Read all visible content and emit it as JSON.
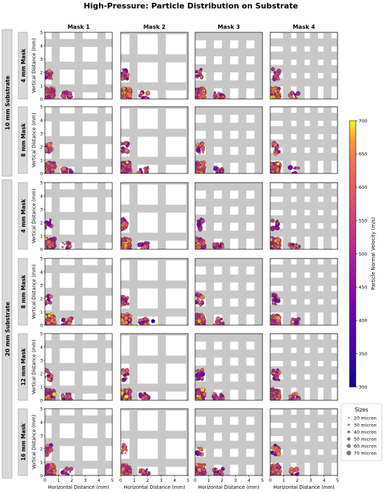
{
  "title": "High-Pressure: Particle Distribution on Substrate",
  "columns": [
    "Mask 1",
    "Mask 2",
    "Mask 3",
    "Mask 4"
  ],
  "substrate_groups": [
    {
      "label": "10 mm Substrate",
      "rows": [
        "4 mm Mask",
        "8 mm Mask"
      ]
    },
    {
      "label": "20 mm Substrate",
      "rows": [
        "4 mm Mask",
        "8 mm Mask",
        "12 mm Mask",
        "16 mm Mask"
      ]
    }
  ],
  "xlabel": "Horizontal Distance (mm)",
  "ylabel": "Vertical Distance (mm)",
  "xlim": [
    0,
    5
  ],
  "ylim": [
    0,
    5
  ],
  "ticks": [
    "0",
    "1",
    "2",
    "3",
    "4",
    "5"
  ],
  "colorbar": {
    "label": "Particle Normal Velocity (m/s)",
    "min": 300,
    "max": 700,
    "ticks": [
      "300",
      "350",
      "400",
      "450",
      "500",
      "550",
      "600",
      "650",
      "700"
    ],
    "colormap": "plasma"
  },
  "sizes_legend": {
    "title": "Sizes",
    "items": [
      "20 micron",
      "30 micron",
      "40 micron",
      "50 micron",
      "60 micron",
      "70 micron"
    ]
  },
  "colors": {
    "mask_bar": "#c8c8c8",
    "row_label_bg": "#d9d9d9",
    "cmap_low": "#0d0887",
    "cmap_high": "#f0f921"
  },
  "chart_data": {
    "type": "scatter",
    "description_of_masks": {
      "Mask 1": {
        "bar_width_mm": 0.6,
        "period_mm": 1.7
      },
      "Mask 2": {
        "bar_width_mm": 0.6,
        "period_mm": 2.1
      },
      "Mask 3": {
        "bar_width_mm": 0.6,
        "period_mm": 1.2
      },
      "Mask 4": {
        "bar_width_mm": 0.6,
        "period_mm": 1.0
      }
    },
    "clusters": [
      {
        "label": "bottom-left",
        "x_range": [
          0,
          0.7
        ],
        "y_range": [
          0,
          0.8
        ],
        "velocity_range": [
          450,
          700
        ]
      },
      {
        "label": "left-middle",
        "x_range": [
          0,
          0.5
        ],
        "y_range": [
          1.5,
          2.3
        ],
        "velocity_range": [
          400,
          650
        ]
      },
      {
        "label": "bottom-second",
        "x_range": [
          1.3,
          2.0
        ],
        "y_range": [
          0,
          0.5
        ],
        "velocity_range": [
          400,
          650
        ]
      }
    ],
    "outlier": {
      "panel": "20 mm Substrate / 8 mm Mask / Mask 2",
      "x": 2.4,
      "y": 0.3,
      "velocity": 320
    }
  }
}
